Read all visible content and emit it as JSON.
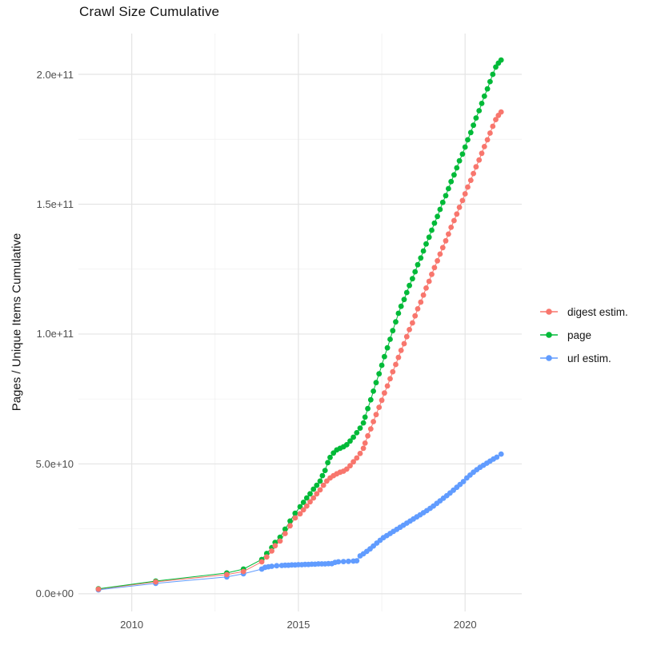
{
  "chart_data": {
    "type": "scatter",
    "title": "Crawl Size Cumulative",
    "xlabel": "",
    "ylabel": "Pages / Unique Items Cumulative",
    "value_unit_multiplier": 1000000000,
    "grid": true,
    "legend_position": "right",
    "xlim": [
      2008.4,
      2021.7
    ],
    "ylim_e9": [
      -6.8,
      215.7
    ],
    "x_ticks": {
      "major": [
        2010,
        2015,
        2020
      ],
      "minor": [
        2012.5,
        2017.5
      ],
      "labels": [
        "2010",
        "2015",
        "2020"
      ]
    },
    "y_ticks": {
      "major_e9": [
        0,
        50,
        100,
        150,
        200
      ],
      "minor_e9": [
        25,
        75,
        125,
        175
      ],
      "labels": [
        "0.0e+00",
        "5.0e+10",
        "1.0e+11",
        "1.5e+11",
        "2.0e+11"
      ]
    },
    "series": [
      {
        "name": "digest estim.",
        "color": "#F8766D",
        "points_year_e9": [
          [
            2009.0,
            1.8
          ],
          [
            2010.72,
            4.6
          ],
          [
            2012.85,
            7.4
          ],
          [
            2013.35,
            8.6
          ],
          [
            2013.9,
            12.3
          ],
          [
            2014.05,
            14.2
          ],
          [
            2014.2,
            16.5
          ],
          [
            2014.3,
            18.5
          ],
          [
            2014.45,
            20.3
          ],
          [
            2014.6,
            23.2
          ],
          [
            2014.75,
            26.2
          ],
          [
            2014.9,
            29.2
          ],
          [
            2015.05,
            30.8
          ],
          [
            2015.15,
            32.3
          ],
          [
            2015.25,
            33.8
          ],
          [
            2015.35,
            35.4
          ],
          [
            2015.45,
            36.9
          ],
          [
            2015.55,
            38.5
          ],
          [
            2015.65,
            40.0
          ],
          [
            2015.75,
            41.8
          ],
          [
            2015.85,
            43.4
          ],
          [
            2015.95,
            44.6
          ],
          [
            2016.05,
            45.5
          ],
          [
            2016.15,
            46.2
          ],
          [
            2016.25,
            46.8
          ],
          [
            2016.35,
            47.2
          ],
          [
            2016.45,
            48.0
          ],
          [
            2016.55,
            49.3
          ],
          [
            2016.65,
            50.8
          ],
          [
            2016.75,
            52.3
          ],
          [
            2016.85,
            54.0
          ],
          [
            2016.95,
            56.0
          ],
          [
            2017.0,
            58.0
          ],
          [
            2017.08,
            60.8
          ],
          [
            2017.17,
            63.5
          ],
          [
            2017.25,
            66.3
          ],
          [
            2017.33,
            69.0
          ],
          [
            2017.42,
            71.8
          ],
          [
            2017.5,
            74.5
          ],
          [
            2017.58,
            77.3
          ],
          [
            2017.67,
            80.0
          ],
          [
            2017.75,
            82.8
          ],
          [
            2017.83,
            85.5
          ],
          [
            2017.92,
            88.3
          ],
          [
            2018.0,
            91.0
          ],
          [
            2018.08,
            93.7
          ],
          [
            2018.17,
            96.3
          ],
          [
            2018.25,
            99.0
          ],
          [
            2018.33,
            101.7
          ],
          [
            2018.42,
            104.3
          ],
          [
            2018.5,
            107.0
          ],
          [
            2018.58,
            109.7
          ],
          [
            2018.67,
            112.3
          ],
          [
            2018.75,
            115.0
          ],
          [
            2018.83,
            117.7
          ],
          [
            2018.92,
            120.3
          ],
          [
            2019.0,
            123.0
          ],
          [
            2019.08,
            125.6
          ],
          [
            2019.17,
            128.2
          ],
          [
            2019.25,
            130.8
          ],
          [
            2019.33,
            133.3
          ],
          [
            2019.42,
            135.9
          ],
          [
            2019.5,
            138.5
          ],
          [
            2019.58,
            141.1
          ],
          [
            2019.67,
            143.7
          ],
          [
            2019.75,
            146.2
          ],
          [
            2019.83,
            148.8
          ],
          [
            2019.92,
            151.4
          ],
          [
            2020.0,
            154.0
          ],
          [
            2020.08,
            156.6
          ],
          [
            2020.17,
            159.2
          ],
          [
            2020.25,
            161.8
          ],
          [
            2020.33,
            164.4
          ],
          [
            2020.42,
            167.0
          ],
          [
            2020.5,
            169.6
          ],
          [
            2020.58,
            172.2
          ],
          [
            2020.67,
            174.8
          ],
          [
            2020.75,
            177.4
          ],
          [
            2020.83,
            180.0
          ],
          [
            2020.92,
            182.6
          ],
          [
            2021.0,
            184.2
          ],
          [
            2021.08,
            185.5
          ]
        ]
      },
      {
        "name": "page",
        "color": "#00BA38",
        "points_year_e9": [
          [
            2009.0,
            1.9
          ],
          [
            2010.72,
            4.9
          ],
          [
            2012.85,
            8.0
          ],
          [
            2013.35,
            9.5
          ],
          [
            2013.9,
            13.2
          ],
          [
            2014.05,
            15.5
          ],
          [
            2014.2,
            17.8
          ],
          [
            2014.3,
            19.8
          ],
          [
            2014.45,
            21.8
          ],
          [
            2014.6,
            24.9
          ],
          [
            2014.75,
            28.0
          ],
          [
            2014.9,
            31.0
          ],
          [
            2015.05,
            33.5
          ],
          [
            2015.15,
            35.2
          ],
          [
            2015.25,
            36.9
          ],
          [
            2015.35,
            38.5
          ],
          [
            2015.45,
            40.3
          ],
          [
            2015.55,
            41.8
          ],
          [
            2015.65,
            43.4
          ],
          [
            2015.72,
            45.5
          ],
          [
            2015.8,
            47.5
          ],
          [
            2015.88,
            50.5
          ],
          [
            2015.95,
            52.5
          ],
          [
            2016.05,
            54.2
          ],
          [
            2016.15,
            55.4
          ],
          [
            2016.25,
            56.0
          ],
          [
            2016.35,
            56.6
          ],
          [
            2016.45,
            57.4
          ],
          [
            2016.55,
            58.8
          ],
          [
            2016.65,
            60.3
          ],
          [
            2016.75,
            62.0
          ],
          [
            2016.85,
            63.8
          ],
          [
            2016.95,
            65.8
          ],
          [
            2017.0,
            68.0
          ],
          [
            2017.08,
            71.3
          ],
          [
            2017.17,
            74.7
          ],
          [
            2017.25,
            78.0
          ],
          [
            2017.33,
            81.3
          ],
          [
            2017.42,
            84.7
          ],
          [
            2017.5,
            88.0
          ],
          [
            2017.58,
            91.3
          ],
          [
            2017.67,
            94.7
          ],
          [
            2017.75,
            98.0
          ],
          [
            2017.83,
            101.3
          ],
          [
            2017.92,
            104.7
          ],
          [
            2018.0,
            108.0
          ],
          [
            2018.08,
            110.7
          ],
          [
            2018.17,
            113.3
          ],
          [
            2018.25,
            116.0
          ],
          [
            2018.33,
            118.7
          ],
          [
            2018.42,
            121.3
          ],
          [
            2018.5,
            124.0
          ],
          [
            2018.58,
            126.7
          ],
          [
            2018.67,
            129.3
          ],
          [
            2018.75,
            132.0
          ],
          [
            2018.83,
            134.7
          ],
          [
            2018.92,
            137.3
          ],
          [
            2019.0,
            140.0
          ],
          [
            2019.08,
            142.7
          ],
          [
            2019.17,
            145.3
          ],
          [
            2019.25,
            148.0
          ],
          [
            2019.33,
            150.7
          ],
          [
            2019.42,
            153.3
          ],
          [
            2019.5,
            156.0
          ],
          [
            2019.58,
            158.7
          ],
          [
            2019.67,
            161.3
          ],
          [
            2019.75,
            164.0
          ],
          [
            2019.83,
            166.7
          ],
          [
            2019.92,
            169.3
          ],
          [
            2020.0,
            172.0
          ],
          [
            2020.08,
            174.8
          ],
          [
            2020.17,
            177.6
          ],
          [
            2020.25,
            180.4
          ],
          [
            2020.33,
            183.2
          ],
          [
            2020.42,
            186.0
          ],
          [
            2020.5,
            188.8
          ],
          [
            2020.58,
            191.6
          ],
          [
            2020.67,
            194.4
          ],
          [
            2020.75,
            197.2
          ],
          [
            2020.83,
            200.0
          ],
          [
            2020.92,
            202.8
          ],
          [
            2021.0,
            204.3
          ],
          [
            2021.08,
            205.5
          ]
        ]
      },
      {
        "name": "url estim.",
        "color": "#619CFF",
        "points_year_e9": [
          [
            2009.0,
            1.5
          ],
          [
            2010.72,
            4.0
          ],
          [
            2012.85,
            6.5
          ],
          [
            2013.35,
            7.7
          ],
          [
            2013.9,
            9.5
          ],
          [
            2014.0,
            10.2
          ],
          [
            2014.1,
            10.4
          ],
          [
            2014.2,
            10.6
          ],
          [
            2014.35,
            10.8
          ],
          [
            2014.5,
            10.9
          ],
          [
            2014.6,
            11.0
          ],
          [
            2014.7,
            11.0
          ],
          [
            2014.8,
            11.1
          ],
          [
            2014.9,
            11.1
          ],
          [
            2015.0,
            11.2
          ],
          [
            2015.1,
            11.2
          ],
          [
            2015.2,
            11.3
          ],
          [
            2015.3,
            11.3
          ],
          [
            2015.4,
            11.4
          ],
          [
            2015.5,
            11.4
          ],
          [
            2015.6,
            11.5
          ],
          [
            2015.7,
            11.5
          ],
          [
            2015.8,
            11.5
          ],
          [
            2015.9,
            11.6
          ],
          [
            2016.0,
            11.6
          ],
          [
            2016.1,
            12.1
          ],
          [
            2016.2,
            12.3
          ],
          [
            2016.35,
            12.4
          ],
          [
            2016.5,
            12.5
          ],
          [
            2016.65,
            12.6
          ],
          [
            2016.75,
            12.7
          ],
          [
            2016.85,
            14.6
          ],
          [
            2016.95,
            15.4
          ],
          [
            2017.05,
            16.3
          ],
          [
            2017.15,
            17.3
          ],
          [
            2017.25,
            18.4
          ],
          [
            2017.35,
            19.5
          ],
          [
            2017.45,
            20.6
          ],
          [
            2017.55,
            21.6
          ],
          [
            2017.65,
            22.4
          ],
          [
            2017.75,
            23.2
          ],
          [
            2017.85,
            24.0
          ],
          [
            2017.95,
            24.8
          ],
          [
            2018.05,
            25.6
          ],
          [
            2018.15,
            26.4
          ],
          [
            2018.25,
            27.2
          ],
          [
            2018.35,
            28.0
          ],
          [
            2018.45,
            28.8
          ],
          [
            2018.55,
            29.6
          ],
          [
            2018.65,
            30.4
          ],
          [
            2018.75,
            31.2
          ],
          [
            2018.85,
            32.0
          ],
          [
            2018.95,
            32.9
          ],
          [
            2019.05,
            33.8
          ],
          [
            2019.15,
            34.8
          ],
          [
            2019.25,
            35.8
          ],
          [
            2019.35,
            36.8
          ],
          [
            2019.45,
            37.8
          ],
          [
            2019.55,
            38.8
          ],
          [
            2019.65,
            39.9
          ],
          [
            2019.75,
            41.0
          ],
          [
            2019.85,
            42.1
          ],
          [
            2019.95,
            43.2
          ],
          [
            2020.05,
            44.6
          ],
          [
            2020.15,
            45.7
          ],
          [
            2020.25,
            46.8
          ],
          [
            2020.35,
            47.8
          ],
          [
            2020.45,
            48.7
          ],
          [
            2020.55,
            49.5
          ],
          [
            2020.65,
            50.3
          ],
          [
            2020.75,
            51.1
          ],
          [
            2020.85,
            51.9
          ],
          [
            2020.95,
            52.6
          ],
          [
            2021.08,
            53.8
          ]
        ]
      }
    ]
  }
}
